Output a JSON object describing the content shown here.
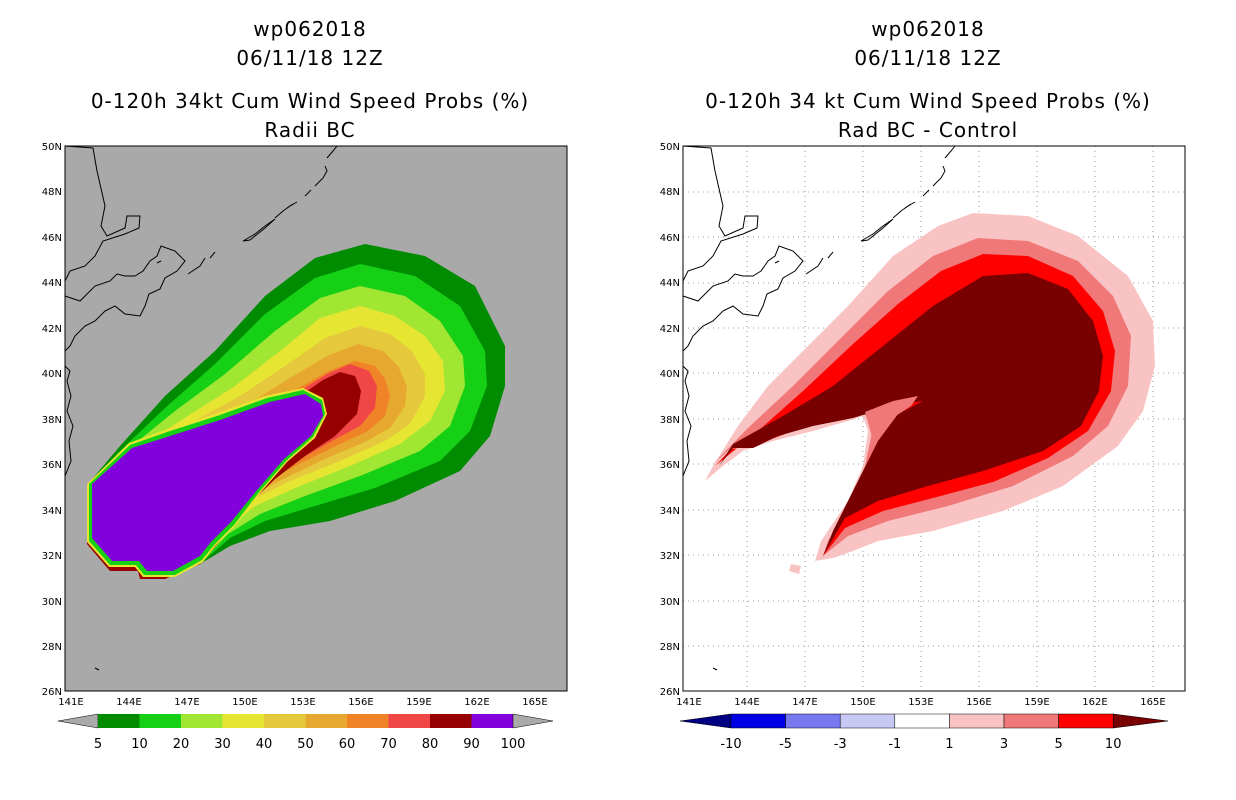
{
  "left_panel": {
    "title_line1": "wp062018",
    "title_line2": "06/11/18 12Z",
    "title_line3": "0-120h 34kt Cum Wind Speed Probs (%)",
    "title_line4": "Radii BC",
    "background_color": "#a9a9a9",
    "colorbar": {
      "labels": [
        "5",
        "10",
        "20",
        "30",
        "40",
        "50",
        "60",
        "70",
        "80",
        "90",
        "100"
      ],
      "colors": [
        "#008c00",
        "#16d016",
        "#a0e632",
        "#e6e632",
        "#e6c83c",
        "#e6a82e",
        "#f08228",
        "#f04646",
        "#960000",
        "#8200dc"
      ],
      "end_low_color": "#aaaaaa",
      "end_high_color": "#aaaaaa"
    }
  },
  "right_panel": {
    "title_line1": "wp062018",
    "title_line2": "06/11/18 12Z",
    "title_line3": "0-120h 34 kt Cum Wind Speed Probs (%)",
    "title_line4": "Rad BC - Control",
    "background_color": "#ffffff",
    "colorbar": {
      "labels": [
        "-10",
        "-5",
        "-3",
        "-1",
        "1",
        "3",
        "5",
        "10"
      ],
      "colors": [
        "#0000e6",
        "#7878f0",
        "#c8c8f5",
        "#ffffff",
        "#fac3c3",
        "#f07878",
        "#ff0000"
      ],
      "end_low_color": "#000082",
      "end_high_color": "#780000"
    }
  },
  "axes": {
    "lat_labels": [
      "50N",
      "48N",
      "46N",
      "44N",
      "42N",
      "40N",
      "38N",
      "36N",
      "34N",
      "32N",
      "30N",
      "28N",
      "26N"
    ],
    "lon_labels": [
      "141E",
      "144E",
      "147E",
      "150E",
      "153E",
      "156E",
      "159E",
      "162E",
      "165E"
    ],
    "lat_range": [
      26,
      50
    ],
    "lon_range": [
      140.7,
      166.7
    ]
  }
}
